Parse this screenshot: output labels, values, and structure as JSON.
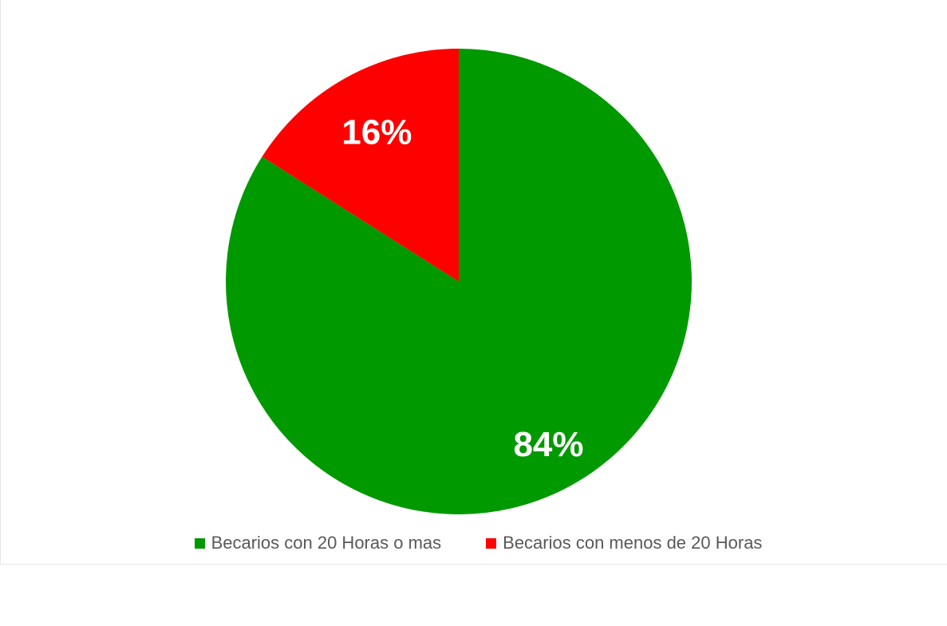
{
  "chart_data": {
    "type": "pie",
    "start_angle_deg": 0,
    "direction": "clockwise",
    "slices": [
      {
        "name": "Becarios con 20 Horas o mas",
        "value": 84,
        "label": "84%",
        "color": "#009900"
      },
      {
        "name": "Becarios con menos de 20 Horas",
        "value": 16,
        "label": "16%",
        "color": "#ff0000"
      }
    ],
    "legend_position": "bottom",
    "title": ""
  }
}
